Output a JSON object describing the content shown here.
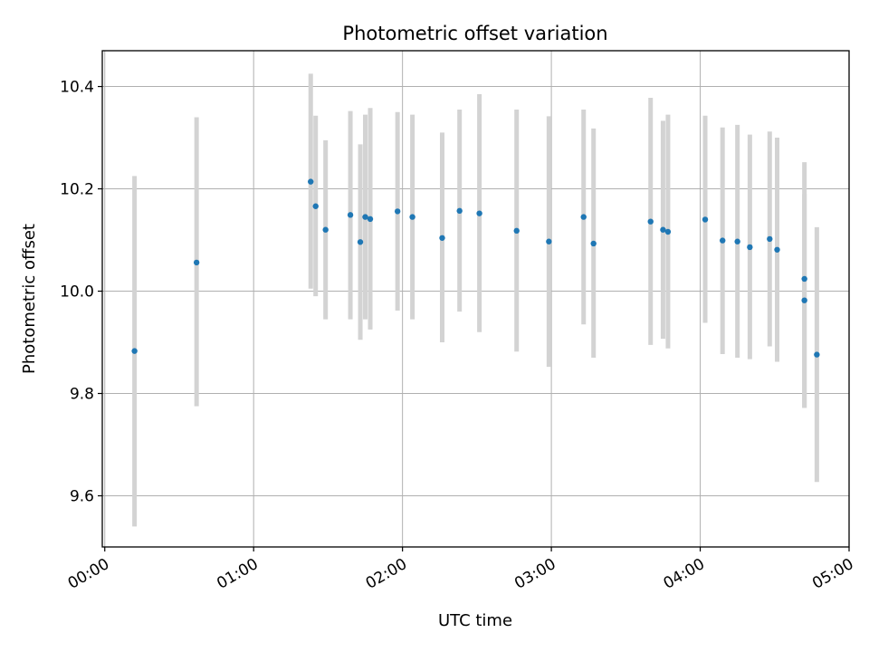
{
  "chart_data": {
    "type": "scatter",
    "title": "Photometric offset variation",
    "xlabel": "UTC time",
    "ylabel": "Photometric offset",
    "x_axis": "time",
    "xlim": [
      "23:59",
      "05:00"
    ],
    "ylim": [
      9.5,
      10.47
    ],
    "x_ticks": [
      "00:00",
      "01:00",
      "02:00",
      "03:00",
      "04:00",
      "05:00"
    ],
    "y_ticks": [
      9.6,
      9.8,
      10.0,
      10.2,
      10.4
    ],
    "grid": true,
    "colors": {
      "marker": "#1f77b4",
      "errorbar": "#d3d3d3",
      "grid": "#b0b0b0"
    },
    "points": [
      {
        "x": "00:12",
        "y": 9.883,
        "low": 9.54,
        "high": 10.225
      },
      {
        "x": "00:37",
        "y": 10.056,
        "low": 9.775,
        "high": 10.34
      },
      {
        "x": "01:23",
        "y": 10.214,
        "low": 10.005,
        "high": 10.425
      },
      {
        "x": "01:25",
        "y": 10.166,
        "low": 9.99,
        "high": 10.343
      },
      {
        "x": "01:29",
        "y": 10.12,
        "low": 9.945,
        "high": 10.295
      },
      {
        "x": "01:39",
        "y": 10.149,
        "low": 9.945,
        "high": 10.352
      },
      {
        "x": "01:43",
        "y": 10.096,
        "low": 9.905,
        "high": 10.287
      },
      {
        "x": "01:45",
        "y": 10.145,
        "low": 9.945,
        "high": 10.345
      },
      {
        "x": "01:47",
        "y": 10.141,
        "low": 9.925,
        "high": 10.358
      },
      {
        "x": "01:58",
        "y": 10.156,
        "low": 9.962,
        "high": 10.35
      },
      {
        "x": "02:04",
        "y": 10.145,
        "low": 9.945,
        "high": 10.345
      },
      {
        "x": "02:16",
        "y": 10.104,
        "low": 9.9,
        "high": 10.31
      },
      {
        "x": "02:23",
        "y": 10.157,
        "low": 9.96,
        "high": 10.355
      },
      {
        "x": "02:31",
        "y": 10.152,
        "low": 9.92,
        "high": 10.385
      },
      {
        "x": "02:46",
        "y": 10.118,
        "low": 9.882,
        "high": 10.355
      },
      {
        "x": "02:59",
        "y": 10.097,
        "low": 9.852,
        "high": 10.342
      },
      {
        "x": "03:13",
        "y": 10.145,
        "low": 9.935,
        "high": 10.355
      },
      {
        "x": "03:17",
        "y": 10.093,
        "low": 9.87,
        "high": 10.318
      },
      {
        "x": "03:40",
        "y": 10.136,
        "low": 9.895,
        "high": 10.378
      },
      {
        "x": "03:45",
        "y": 10.12,
        "low": 9.907,
        "high": 10.333
      },
      {
        "x": "03:47",
        "y": 10.116,
        "low": 9.888,
        "high": 10.345
      },
      {
        "x": "04:02",
        "y": 10.14,
        "low": 9.938,
        "high": 10.343
      },
      {
        "x": "04:09",
        "y": 10.099,
        "low": 9.877,
        "high": 10.32
      },
      {
        "x": "04:15",
        "y": 10.097,
        "low": 9.87,
        "high": 10.325
      },
      {
        "x": "04:20",
        "y": 10.086,
        "low": 9.867,
        "high": 10.306
      },
      {
        "x": "04:28",
        "y": 10.102,
        "low": 9.892,
        "high": 10.312
      },
      {
        "x": "04:31",
        "y": 10.081,
        "low": 9.862,
        "high": 10.3
      },
      {
        "x": "04:42",
        "y": 10.024,
        "low": 9.772,
        "high": 10.252
      },
      {
        "x": "04:42",
        "y": 9.982,
        "low": 9.772,
        "high": 10.19
      },
      {
        "x": "04:47",
        "y": 9.876,
        "low": 9.627,
        "high": 10.125
      }
    ]
  }
}
